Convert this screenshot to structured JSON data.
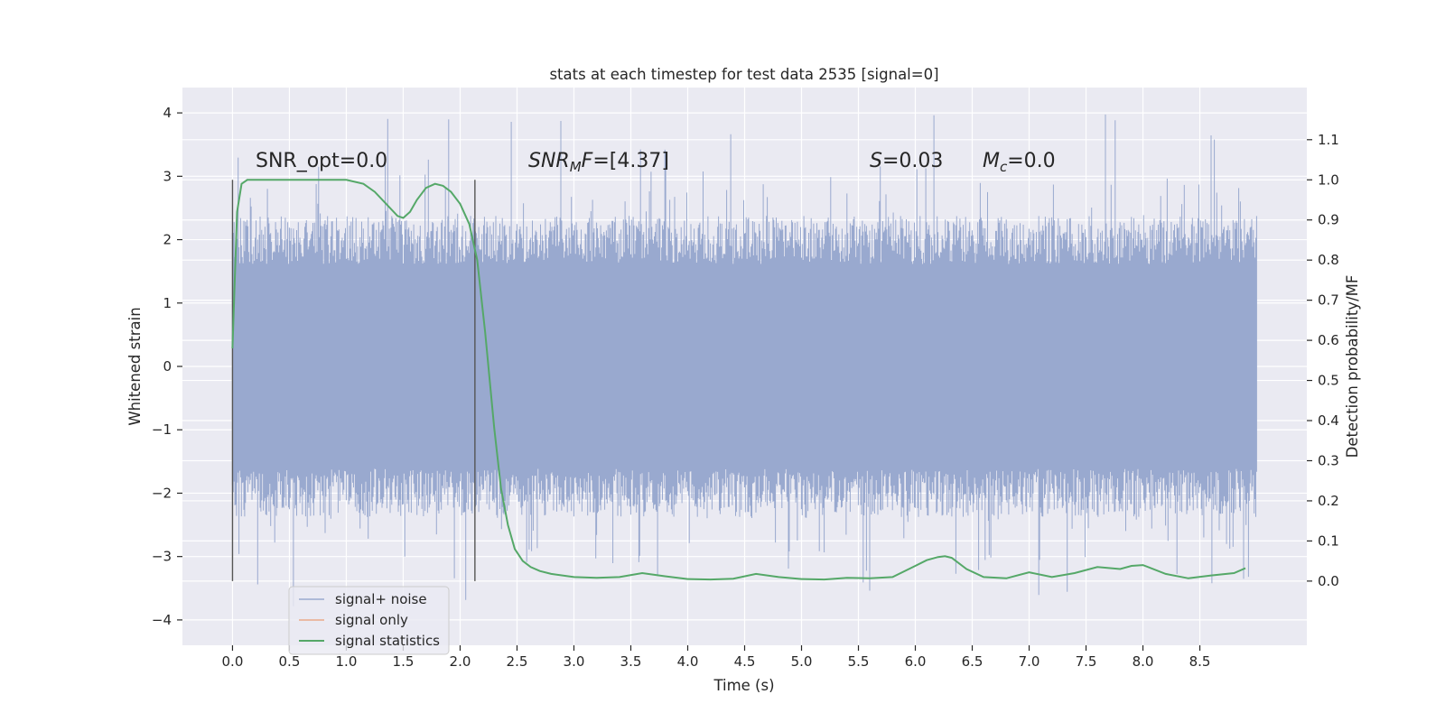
{
  "chart_data": {
    "type": "line",
    "title": "stats at each timestep for test data 2535 [signal=0]",
    "xlabel": "Time (s)",
    "ylabel": "Whitened strain",
    "y2label": "Detection probability/MF",
    "xlim": [
      -0.44,
      9.44
    ],
    "ylim": [
      -4.4,
      4.4
    ],
    "y2lim": [
      -0.16,
      1.23
    ],
    "x_ticks": [
      "0.0",
      "0.5",
      "1.0",
      "1.5",
      "2.0",
      "2.5",
      "3.0",
      "3.5",
      "4.0",
      "4.5",
      "5.0",
      "5.5",
      "6.0",
      "6.5",
      "7.0",
      "7.5",
      "8.0",
      "8.5"
    ],
    "x_tick_values": [
      0,
      0.5,
      1,
      1.5,
      2,
      2.5,
      3,
      3.5,
      4,
      4.5,
      5,
      5.5,
      6,
      6.5,
      7,
      7.5,
      8,
      8.5
    ],
    "y_ticks": [
      "4",
      "3",
      "2",
      "1",
      "0",
      "−1",
      "−2",
      "−3",
      "−4"
    ],
    "y_tick_values": [
      4,
      3,
      2,
      1,
      0,
      -1,
      -2,
      -3,
      -4
    ],
    "y2_ticks": [
      "1.1",
      "1.0",
      "0.9",
      "0.8",
      "0.7",
      "0.6",
      "0.5",
      "0.4",
      "0.3",
      "0.2",
      "0.1",
      "0.0"
    ],
    "y2_tick_values": [
      1.1,
      1.0,
      0.9,
      0.8,
      0.7,
      0.6,
      0.5,
      0.4,
      0.3,
      0.2,
      0.1,
      0.0
    ],
    "grid": true,
    "legend_placement": "lower-left",
    "annotations": {
      "snr_opt": "SNR_opt=0.0",
      "snr_mf_main": "SNR",
      "snr_mf_sub": "M",
      "snr_mf_main2": "F",
      "snr_mf_value": "=[4.37]",
      "s_symbol": "S",
      "s_value": "=0.03",
      "mc_symbol": "M",
      "mc_sub": "c",
      "mc_value": "=0.0"
    },
    "vertical_markers": [
      0.0,
      2.13
    ],
    "series": [
      {
        "name": "signal+ noise",
        "color": "#99a9cf",
        "description": "noise band",
        "x_range": [
          0.0,
          9.0
        ],
        "typical_range": [
          -1.9,
          1.9
        ],
        "extremes": [
          -4.0,
          4.0
        ]
      },
      {
        "name": "signal only",
        "color": "#e9a98a",
        "x": [],
        "values": []
      },
      {
        "name": "signal statistics",
        "color": "#55a868",
        "x": [
          0.0,
          0.04,
          0.08,
          0.13,
          0.2,
          0.3,
          0.5,
          0.8,
          1.0,
          1.15,
          1.25,
          1.35,
          1.45,
          1.5,
          1.56,
          1.62,
          1.7,
          1.78,
          1.85,
          1.92,
          2.0,
          2.08,
          2.15,
          2.22,
          2.3,
          2.36,
          2.42,
          2.48,
          2.55,
          2.62,
          2.7,
          2.8,
          3.0,
          3.2,
          3.4,
          3.6,
          3.8,
          4.0,
          4.2,
          4.4,
          4.6,
          4.8,
          5.0,
          5.2,
          5.4,
          5.6,
          5.8,
          6.0,
          6.1,
          6.2,
          6.26,
          6.32,
          6.45,
          6.6,
          6.8,
          7.0,
          7.2,
          7.4,
          7.6,
          7.8,
          7.9,
          8.0,
          8.2,
          8.4,
          8.6,
          8.8,
          8.9
        ],
        "values": [
          0.58,
          0.92,
          0.99,
          1.0,
          1.0,
          1.0,
          1.0,
          1.0,
          1.0,
          0.99,
          0.97,
          0.94,
          0.91,
          0.905,
          0.92,
          0.95,
          0.98,
          0.99,
          0.985,
          0.97,
          0.94,
          0.89,
          0.8,
          0.62,
          0.38,
          0.23,
          0.14,
          0.08,
          0.05,
          0.035,
          0.025,
          0.018,
          0.01,
          0.008,
          0.01,
          0.02,
          0.012,
          0.005,
          0.004,
          0.006,
          0.018,
          0.01,
          0.005,
          0.004,
          0.008,
          0.007,
          0.01,
          0.038,
          0.052,
          0.06,
          0.062,
          0.058,
          0.03,
          0.01,
          0.007,
          0.022,
          0.01,
          0.02,
          0.035,
          0.03,
          0.038,
          0.04,
          0.018,
          0.007,
          0.014,
          0.02,
          0.032
        ]
      }
    ]
  }
}
